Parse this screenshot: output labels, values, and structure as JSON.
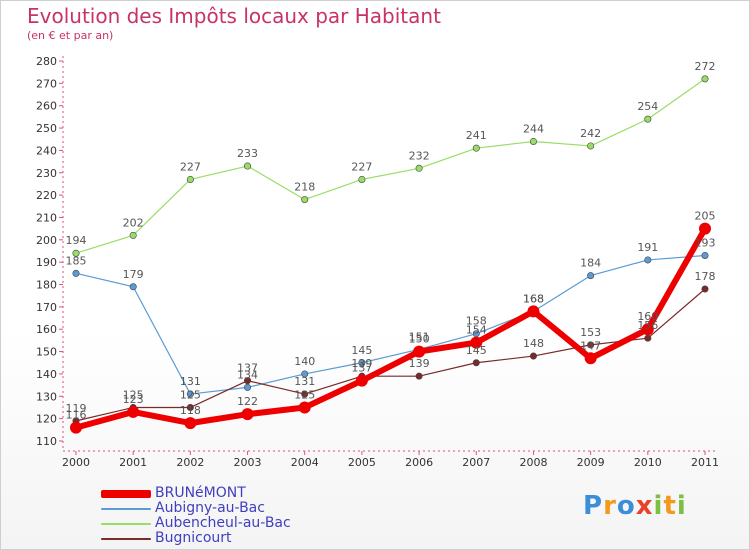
{
  "chart_data": {
    "type": "line",
    "title": "Evolution des Impôts locaux par Habitant",
    "subtitle": "(en € et par an)",
    "xlabel": "",
    "ylabel": "",
    "x": [
      "2000",
      "2001",
      "2002",
      "2003",
      "2004",
      "2005",
      "2006",
      "2007",
      "2008",
      "2009",
      "2010",
      "2011"
    ],
    "ylim": [
      110,
      280
    ],
    "yticks": [
      110,
      120,
      130,
      140,
      150,
      160,
      170,
      180,
      190,
      200,
      210,
      220,
      230,
      240,
      250,
      260,
      270,
      280
    ],
    "grid": false,
    "legend_position": "bottom-left",
    "series": [
      {
        "name": "BRUNéMONT",
        "color": "#ee0000",
        "values": [
          116,
          123,
          118,
          122,
          125,
          137,
          150,
          154,
          168,
          147,
          160,
          205
        ]
      },
      {
        "name": "Aubigny-au-Bac",
        "color": "#5a9bd5",
        "values": [
          185,
          179,
          131,
          134,
          140,
          145,
          151,
          158,
          168,
          184,
          191,
          193
        ]
      },
      {
        "name": "Aubencheul-au-Bac",
        "color": "#99dd66",
        "values": [
          194,
          202,
          227,
          233,
          218,
          227,
          232,
          241,
          244,
          242,
          254,
          272
        ]
      },
      {
        "name": "Bugnicourt",
        "color": "#7a2a2a",
        "values": [
          119,
          125,
          125,
          137,
          131,
          139,
          139,
          145,
          148,
          153,
          156,
          178
        ]
      }
    ]
  },
  "logo": {
    "letters": [
      "P",
      "r",
      "o",
      "x",
      "i",
      "t",
      "i"
    ],
    "colors": [
      "#3a8fd8",
      "#f29a1d",
      "#3a8fd8",
      "#e8432a",
      "#7cc043",
      "#f29a1d",
      "#7cc043"
    ]
  }
}
